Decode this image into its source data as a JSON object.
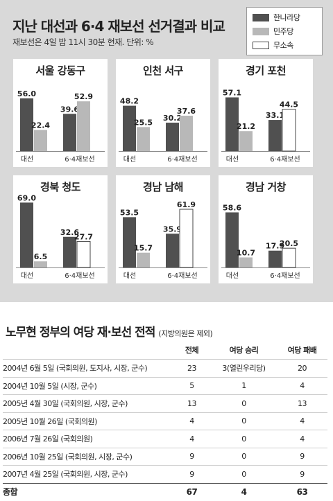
{
  "title": "지난 대선과 6·4 재보선 선거결과 비교",
  "subtitle": "재보선은 4일 밤 11시 30분 현재.  단위: %",
  "legend": [
    {
      "label": "한나라당",
      "color": "#505050"
    },
    {
      "label": "민주당",
      "color": "#b8b8b8"
    },
    {
      "label": "무소속",
      "color": "#ffffff"
    }
  ],
  "chart_data": [
    {
      "type": "bar",
      "title": "서울 강동구",
      "categories": [
        "대선",
        "6·4재보선"
      ],
      "series": [
        {
          "name": "한나라당",
          "values": [
            56.0,
            39.6
          ]
        },
        {
          "name": "민주당",
          "values": [
            22.4,
            52.9
          ]
        }
      ]
    },
    {
      "type": "bar",
      "title": "인천 서구",
      "categories": [
        "대선",
        "6·4재보선"
      ],
      "series": [
        {
          "name": "한나라당",
          "values": [
            48.2,
            30.2
          ]
        },
        {
          "name": "민주당",
          "values": [
            25.5,
            37.6
          ]
        }
      ]
    },
    {
      "type": "bar",
      "title": "경기 포천",
      "categories": [
        "대선",
        "6·4재보선"
      ],
      "series": [
        {
          "name": "한나라당",
          "values": [
            57.1,
            33.1
          ]
        },
        {
          "name": "민주당",
          "values": [
            21.2,
            null
          ]
        },
        {
          "name": "무소속",
          "values": [
            null,
            44.5
          ]
        }
      ]
    },
    {
      "type": "bar",
      "title": "경북 청도",
      "categories": [
        "대선",
        "6·4재보선"
      ],
      "series": [
        {
          "name": "한나라당",
          "values": [
            69.0,
            32.6
          ]
        },
        {
          "name": "민주당",
          "values": [
            6.5,
            null
          ]
        },
        {
          "name": "무소속",
          "values": [
            null,
            27.7
          ]
        }
      ]
    },
    {
      "type": "bar",
      "title": "경남 남해",
      "categories": [
        "대선",
        "6·4재보선"
      ],
      "series": [
        {
          "name": "한나라당",
          "values": [
            53.5,
            35.9
          ]
        },
        {
          "name": "민주당",
          "values": [
            15.7,
            null
          ]
        },
        {
          "name": "무소속",
          "values": [
            null,
            61.9
          ]
        }
      ]
    },
    {
      "type": "bar",
      "title": "경남 거창",
      "categories": [
        "대선",
        "6·4재보선"
      ],
      "series": [
        {
          "name": "한나라당",
          "values": [
            58.6,
            17.9
          ]
        },
        {
          "name": "민주당",
          "values": [
            10.7,
            null
          ]
        },
        {
          "name": "무소속",
          "values": [
            null,
            20.5
          ]
        }
      ]
    }
  ],
  "table": {
    "title": "노무현 정부의 여당 재·보선 전적",
    "note": "(지방의원은 제외)",
    "headers": [
      "",
      "전체",
      "여당 승리",
      "여당 패배"
    ],
    "rows": [
      [
        "2004년 6월 5일 (국회의원, 도지사, 시장, 군수)",
        "23",
        "3(열린우리당)",
        "20"
      ],
      [
        "2004년 10월 5일 (시장, 군수)",
        "5",
        "1",
        "4"
      ],
      [
        "2005년 4월 30일 (국회의원, 시장, 군수)",
        "13",
        "0",
        "13"
      ],
      [
        "2005년 10월 26일 (국회의원)",
        "4",
        "0",
        "4"
      ],
      [
        "2006년 7월 26일 (국회의원)",
        "4",
        "0",
        "4"
      ],
      [
        "2006년 10월 25일 (국회의원, 시장, 군수)",
        "9",
        "0",
        "9"
      ],
      [
        "2007년 4월 25일 (국회의원, 시장, 군수)",
        "9",
        "0",
        "9"
      ]
    ],
    "total": [
      "종합",
      "67",
      "4",
      "63"
    ]
  }
}
